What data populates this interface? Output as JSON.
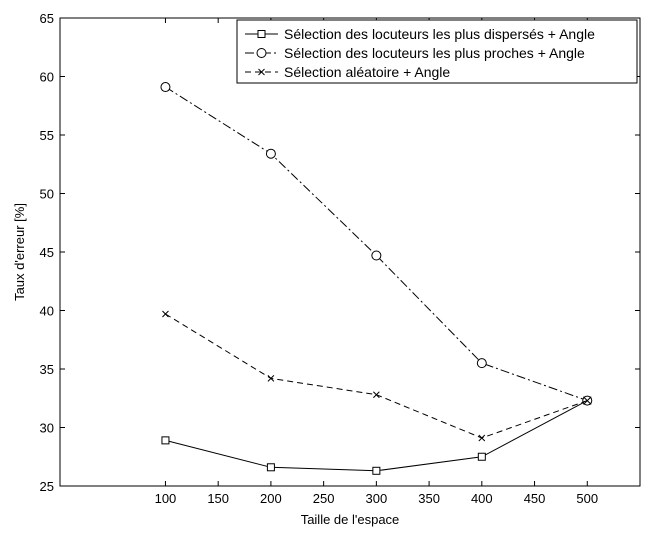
{
  "chart_data": {
    "type": "line",
    "title": "",
    "xlabel": "Taille de l'espace",
    "ylabel": "Taux d'erreur [%]",
    "xlim": [
      0,
      550
    ],
    "ylim": [
      25,
      65
    ],
    "grid": false,
    "legend_position": "top-right",
    "x_ticks": [
      100,
      150,
      200,
      250,
      300,
      350,
      400,
      450,
      500
    ],
    "y_ticks": [
      25,
      30,
      35,
      40,
      45,
      50,
      55,
      60,
      65
    ],
    "x": [
      100,
      200,
      300,
      400,
      500
    ],
    "series": [
      {
        "name": "Sélection des locuteurs les plus dispersés + Angle",
        "values": [
          28.9,
          26.6,
          26.3,
          27.5,
          32.3
        ],
        "marker": "square",
        "dash": "solid",
        "color": "#000000"
      },
      {
        "name": "Sélection des locuteurs les plus proches + Angle",
        "values": [
          59.1,
          53.4,
          44.7,
          35.5,
          32.3
        ],
        "marker": "circle",
        "dash": "dashdot",
        "color": "#000000"
      },
      {
        "name": "Sélection aléatoire + Angle",
        "values": [
          39.7,
          34.2,
          32.8,
          29.1,
          32.3
        ],
        "marker": "x",
        "dash": "dashed",
        "color": "#000000"
      }
    ]
  }
}
